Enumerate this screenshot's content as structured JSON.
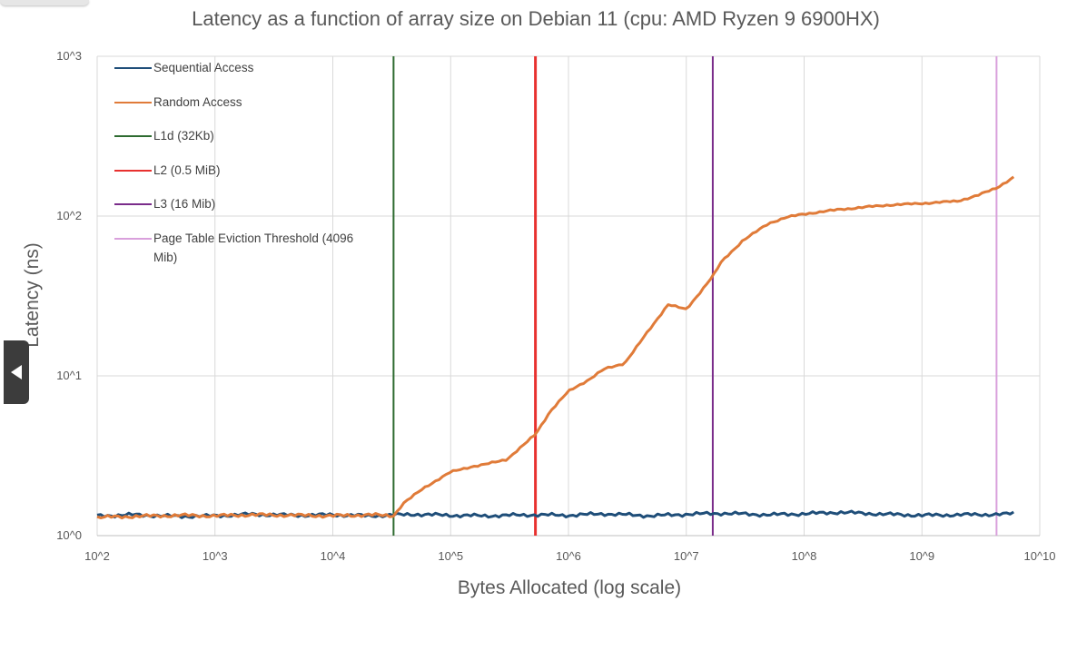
{
  "chart_data": {
    "type": "line",
    "title": "Latency as a function of array size on Debian 11 (cpu: AMD Ryzen 9 6900HX)",
    "xlabel": "Bytes Allocated (log scale)",
    "ylabel": "Latency (ns)",
    "x_scale": "log10",
    "y_scale": "log10",
    "xlim": [
      100,
      10000000000
    ],
    "ylim": [
      1,
      1000
    ],
    "x_ticks": [
      "10^2",
      "10^3",
      "10^4",
      "10^5",
      "10^6",
      "10^7",
      "10^8",
      "10^9",
      "10^10"
    ],
    "y_ticks": [
      "10^0",
      "10^1",
      "10^2",
      "10^3"
    ],
    "grid": true,
    "legend_position": "top-left",
    "series": [
      {
        "name": "Sequential Access",
        "color": "#1f4e79",
        "x": [
          100,
          200,
          500,
          1000,
          2000,
          5000,
          10000,
          20000,
          50000,
          100000,
          200000,
          500000,
          1000000,
          2000000,
          5000000,
          10000000,
          20000000,
          50000000,
          100000000,
          200000000,
          500000000,
          1000000000,
          2000000000,
          5000000000,
          6000000000
        ],
        "y": [
          1.33,
          1.35,
          1.32,
          1.33,
          1.36,
          1.34,
          1.35,
          1.33,
          1.36,
          1.34,
          1.33,
          1.35,
          1.34,
          1.37,
          1.33,
          1.36,
          1.38,
          1.35,
          1.37,
          1.4,
          1.36,
          1.34,
          1.35,
          1.36,
          1.38
        ]
      },
      {
        "name": "Random Access",
        "color": "#e07b39",
        "x": [
          100,
          200,
          500,
          1000,
          2000,
          5000,
          10000,
          20000,
          32768,
          40000,
          60000,
          100000,
          150000,
          200000,
          300000,
          400000,
          524288,
          700000,
          1000000,
          1500000,
          2000000,
          3000000,
          4000000,
          5000000,
          7000000,
          10000000,
          16777216,
          20000000,
          30000000,
          50000000,
          70000000,
          100000000,
          200000000,
          500000000,
          1000000000,
          2000000000,
          3000000000,
          4294967296,
          6000000000
        ],
        "y": [
          1.3,
          1.32,
          1.34,
          1.33,
          1.35,
          1.34,
          1.33,
          1.35,
          1.33,
          1.6,
          2.0,
          2.5,
          2.7,
          2.8,
          3.0,
          3.6,
          4.3,
          6.0,
          8.0,
          9.5,
          11.0,
          12.0,
          16.0,
          20.0,
          28.0,
          26.0,
          42.0,
          52.0,
          70.0,
          90.0,
          98.0,
          103.0,
          110.0,
          117.0,
          120.0,
          124.0,
          135.0,
          150.0,
          175.0
        ]
      },
      {
        "name": "L1d (32Kb)",
        "color": "#2e6b30",
        "type": "vline",
        "x": 32768
      },
      {
        "name": "L2 (0.5 MiB)",
        "color": "#e8312f",
        "type": "vline",
        "x": 524288
      },
      {
        "name": "L3 (16 Mib)",
        "color": "#7a2c8a",
        "type": "vline",
        "x": 16777216
      },
      {
        "name": "Page Table Eviction Threshold (4096 Mib)",
        "color": "#d9a0dc",
        "type": "vline",
        "x": 4294967296
      }
    ]
  }
}
